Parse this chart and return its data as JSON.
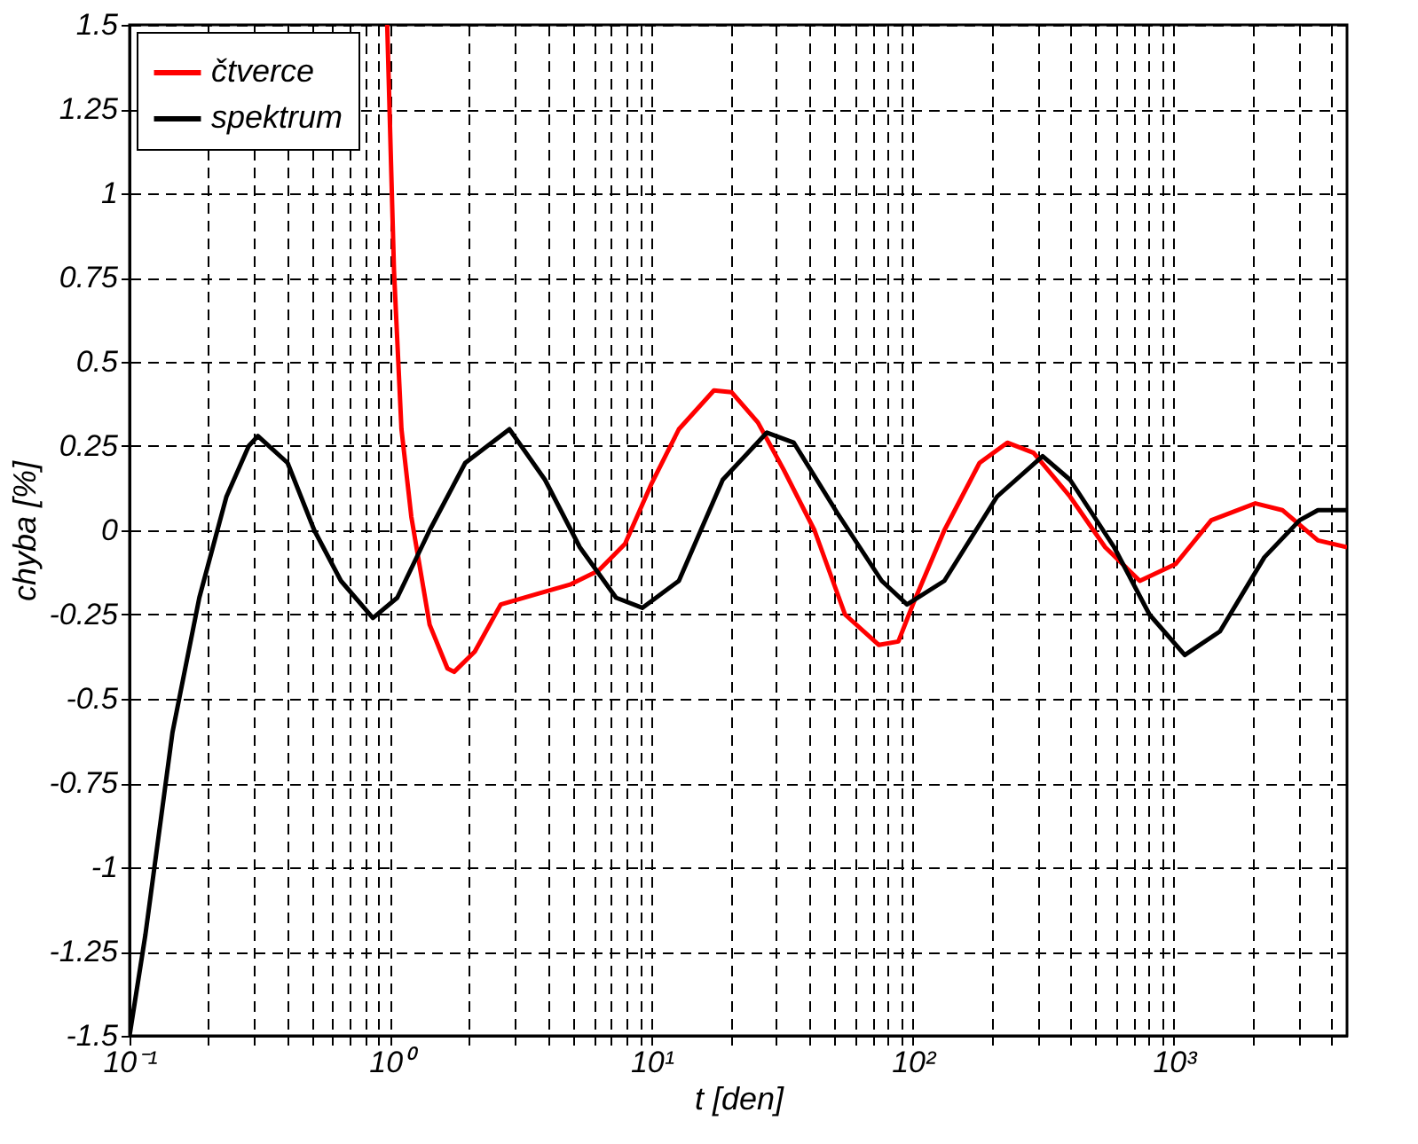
{
  "chart_data": {
    "type": "line",
    "xlabel": "t [den]",
    "ylabel": "chyba [%]",
    "log": "x",
    "grid": true,
    "legend": "top left",
    "marker": "none",
    "line_style": "solid",
    "xlim": [
      0.1,
      4600
    ],
    "ylim": [
      -1.5,
      1.5
    ],
    "xticks": [
      {
        "value": 0.1,
        "label": "10⁻¹"
      },
      {
        "value": 0.2,
        "label": null
      },
      {
        "value": 0.3,
        "label": null
      },
      {
        "value": 0.4,
        "label": null
      },
      {
        "value": 0.5,
        "label": null
      },
      {
        "value": 0.6,
        "label": null
      },
      {
        "value": 0.7,
        "label": null
      },
      {
        "value": 0.8,
        "label": null
      },
      {
        "value": 0.9,
        "label": null
      },
      {
        "value": 1,
        "label": "10⁰"
      },
      {
        "value": 2,
        "label": null
      },
      {
        "value": 3,
        "label": null
      },
      {
        "value": 4,
        "label": null
      },
      {
        "value": 5,
        "label": null
      },
      {
        "value": 6,
        "label": null
      },
      {
        "value": 7,
        "label": null
      },
      {
        "value": 8,
        "label": null
      },
      {
        "value": 9,
        "label": null
      },
      {
        "value": 10,
        "label": "10¹"
      },
      {
        "value": 20,
        "label": null
      },
      {
        "value": 30,
        "label": null
      },
      {
        "value": 40,
        "label": null
      },
      {
        "value": 50,
        "label": null
      },
      {
        "value": 60,
        "label": null
      },
      {
        "value": 70,
        "label": null
      },
      {
        "value": 80,
        "label": null
      },
      {
        "value": 90,
        "label": null
      },
      {
        "value": 100,
        "label": "10²"
      },
      {
        "value": 200,
        "label": null
      },
      {
        "value": 300,
        "label": null
      },
      {
        "value": 400,
        "label": null
      },
      {
        "value": 500,
        "label": null
      },
      {
        "value": 600,
        "label": null
      },
      {
        "value": 700,
        "label": null
      },
      {
        "value": 800,
        "label": null
      },
      {
        "value": 900,
        "label": null
      },
      {
        "value": 1000,
        "label": "10³"
      },
      {
        "value": 2000,
        "label": null
      },
      {
        "value": 3000,
        "label": null
      },
      {
        "value": 4000,
        "label": null
      }
    ],
    "yticks": [
      -1.5,
      -1.25,
      -1,
      -0.75,
      -0.5,
      -0.25,
      0,
      0.25,
      0.5,
      0.75,
      1,
      1.25,
      1.5
    ],
    "series": [
      {
        "name": "čtverce",
        "color": "#ff0000",
        "x": [
          0.97,
          1.03,
          1.1,
          1.2,
          1.41,
          1.65,
          1.75,
          2.1,
          2.64,
          3.6,
          4.9,
          6.25,
          7.9,
          10,
          12.7,
          17.3,
          20.2,
          25.5,
          32,
          42,
          55,
          74,
          88,
          100,
          132,
          180,
          230,
          290,
          400,
          545,
          740,
          1015,
          1390,
          2050,
          2600,
          3560,
          4600
        ],
        "values": [
          1.5,
          0.77,
          0.3,
          0.04,
          -0.28,
          -0.41,
          -0.42,
          -0.36,
          -0.22,
          -0.19,
          -0.16,
          -0.12,
          -0.04,
          0.14,
          0.3,
          0.415,
          0.41,
          0.32,
          0.18,
          0.0,
          -0.25,
          -0.34,
          -0.33,
          -0.22,
          0.0,
          0.2,
          0.26,
          0.23,
          0.1,
          -0.05,
          -0.15,
          -0.1,
          0.03,
          0.08,
          0.06,
          -0.03,
          -0.05
        ]
      },
      {
        "name": "spektrum",
        "color": "#000000",
        "x": [
          0.1,
          0.115,
          0.146,
          0.185,
          0.235,
          0.286,
          0.31,
          0.403,
          0.51,
          0.645,
          0.855,
          1.06,
          1.41,
          1.93,
          2.85,
          3.9,
          5.3,
          7.3,
          9.2,
          12.7,
          18.7,
          27.6,
          35,
          51.5,
          76,
          95,
          132,
          210,
          314,
          400,
          590,
          806,
          1100,
          1500,
          2220,
          3030,
          3560,
          4600
        ],
        "values": [
          -1.5,
          -1.2,
          -0.6,
          -0.2,
          0.1,
          0.25,
          0.28,
          0.2,
          0.0,
          -0.15,
          -0.26,
          -0.2,
          0.0,
          0.2,
          0.3,
          0.15,
          -0.05,
          -0.2,
          -0.23,
          -0.15,
          0.15,
          0.29,
          0.26,
          0.05,
          -0.15,
          -0.22,
          -0.15,
          0.1,
          0.22,
          0.15,
          -0.05,
          -0.25,
          -0.37,
          -0.3,
          -0.08,
          0.03,
          0.06,
          0.06
        ]
      }
    ]
  }
}
